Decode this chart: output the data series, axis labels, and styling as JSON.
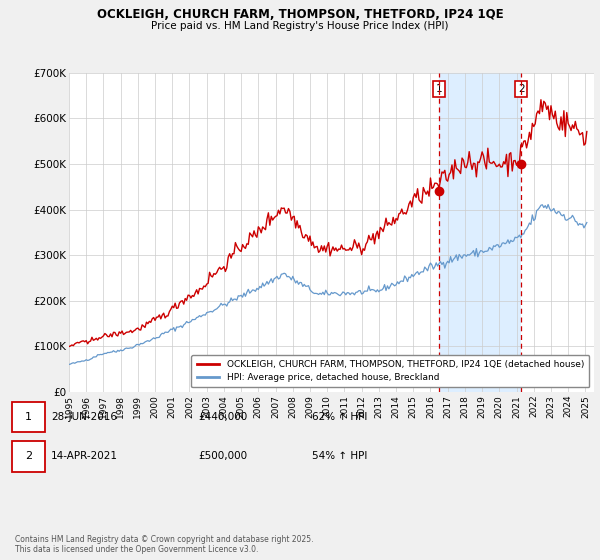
{
  "title": "OCKLEIGH, CHURCH FARM, THOMPSON, THETFORD, IP24 1QE",
  "subtitle": "Price paid vs. HM Land Registry's House Price Index (HPI)",
  "ylim": [
    0,
    700000
  ],
  "yticks": [
    0,
    100000,
    200000,
    300000,
    400000,
    500000,
    600000,
    700000
  ],
  "ytick_labels": [
    "£0",
    "£100K",
    "£200K",
    "£300K",
    "£400K",
    "£500K",
    "£600K",
    "£700K"
  ],
  "xlim_start": 1995.0,
  "xlim_end": 2025.5,
  "background_color": "#f0f0f0",
  "plot_bg_color": "#ffffff",
  "red_line_color": "#cc0000",
  "blue_line_color": "#6699cc",
  "shade_color": "#ddeeff",
  "grid_color": "#cccccc",
  "vline_color": "#cc0000",
  "marker1_x": 2016.49,
  "marker2_x": 2021.28,
  "marker1_y": 440000,
  "marker2_y": 500000,
  "marker1_label": "1",
  "marker2_label": "2",
  "legend_entries": [
    "OCKLEIGH, CHURCH FARM, THOMPSON, THETFORD, IP24 1QE (detached house)",
    "HPI: Average price, detached house, Breckland"
  ],
  "table_rows": [
    [
      "1",
      "28-JUN-2016",
      "£440,000",
      "62% ↑ HPI"
    ],
    [
      "2",
      "14-APR-2021",
      "£500,000",
      "54% ↑ HPI"
    ]
  ],
  "footnote": "Contains HM Land Registry data © Crown copyright and database right 2025.\nThis data is licensed under the Open Government Licence v3.0."
}
